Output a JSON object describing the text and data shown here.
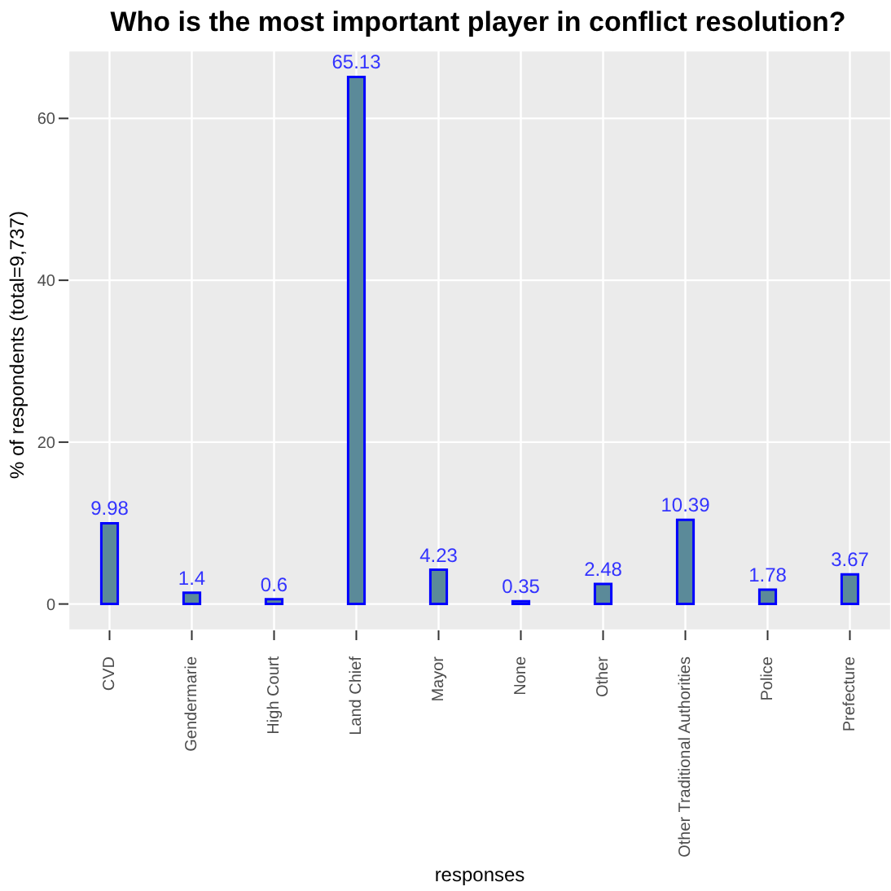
{
  "chart_data": {
    "type": "bar",
    "title": "Who is the most important player in conflict resolution?",
    "xlabel": "responses",
    "ylabel": "% of respondents (total=9,737)",
    "categories": [
      "CVD",
      "Gendermarie",
      "High Court",
      "Land Chief",
      "Mayor",
      "None",
      "Other",
      "Other Traditional Authorities",
      "Police",
      "Prefecture"
    ],
    "values": [
      9.98,
      1.4,
      0.6,
      65.13,
      4.23,
      0.35,
      2.48,
      10.39,
      1.78,
      3.67
    ],
    "color": "#5b8a99",
    "data_labels": true,
    "ylim": [
      -3.26,
      68.39
    ],
    "yticks": [
      0,
      20,
      40,
      60
    ],
    "grid": true,
    "legend": false
  }
}
